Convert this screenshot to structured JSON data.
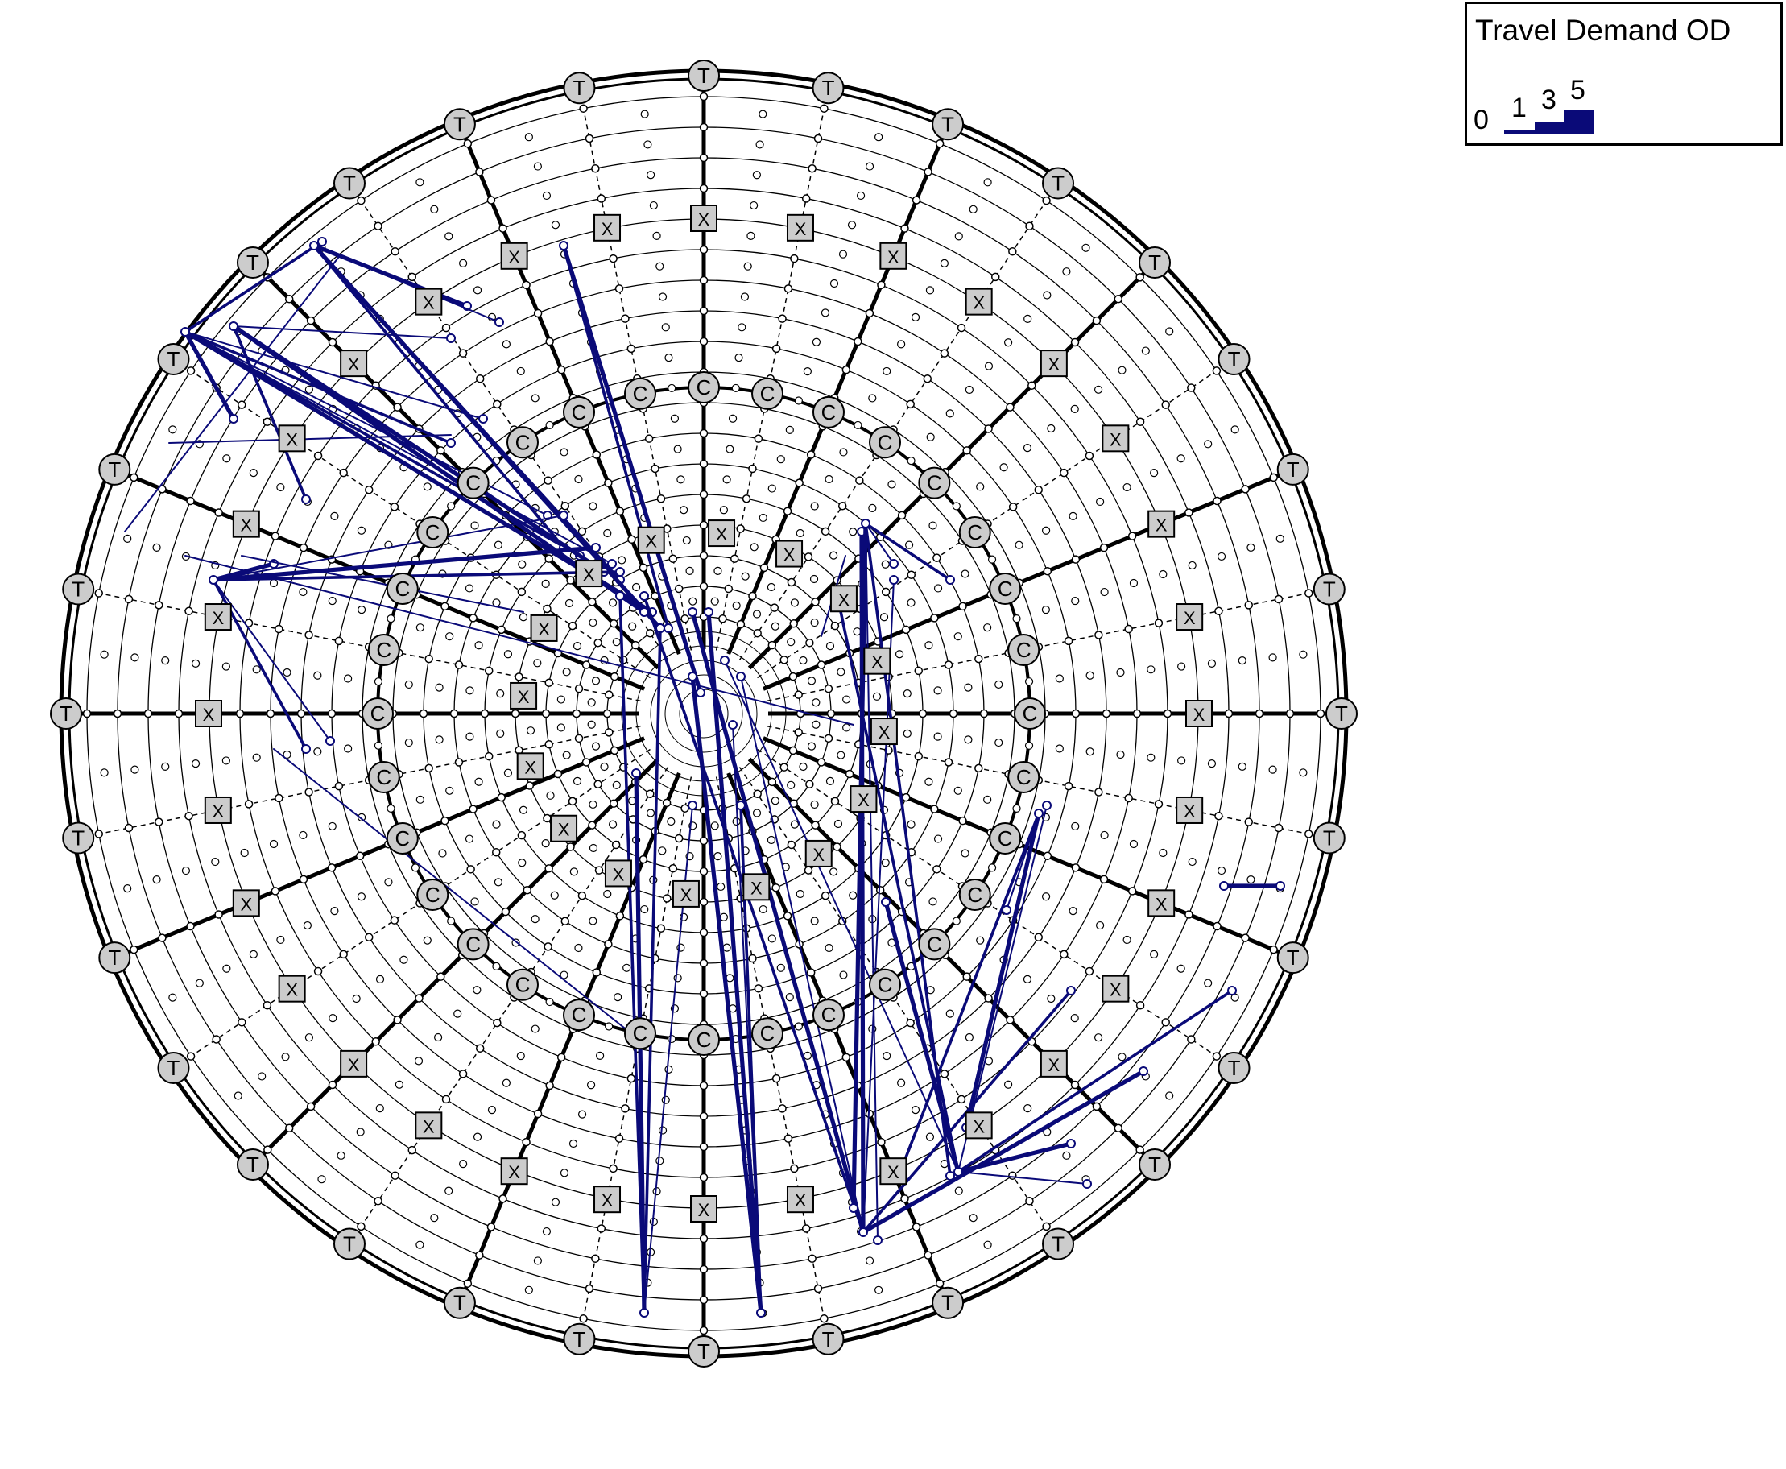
{
  "legend": {
    "title": "Travel Demand OD",
    "scale": [
      {
        "label": "0",
        "value": 0
      },
      {
        "label": "1",
        "value": 1
      },
      {
        "label": "3",
        "value": 3
      },
      {
        "label": "5",
        "value": 5
      }
    ],
    "line_color": "#0a0a78"
  },
  "network": {
    "node_labels": {
      "terminal": "T",
      "centroid": "C",
      "crossing": "X"
    },
    "colors": {
      "od_line": "#0a0a78",
      "node_fill": "#cccccc",
      "node_stroke": "#000000",
      "road": "#000000",
      "background": "#ffffff"
    },
    "counts": {
      "terminal_nodes": 32,
      "centroid_nodes": 32,
      "crossing_nodes": 48
    }
  }
}
